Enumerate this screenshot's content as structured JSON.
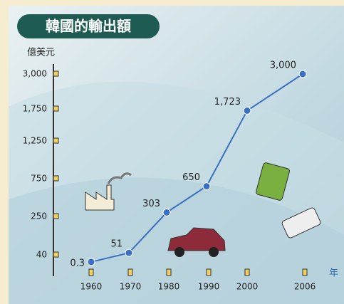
{
  "chart_data": {
    "type": "line",
    "title": "韓國的輸出額",
    "y_label": "億美元",
    "x_label": "年",
    "categories": [
      "1960",
      "1970",
      "1980",
      "1990",
      "2000",
      "2006"
    ],
    "values": [
      0.3,
      51,
      303,
      650,
      1723,
      3000
    ],
    "value_labels": [
      "0.3",
      "51",
      "303",
      "650",
      "1,723",
      "3,000"
    ],
    "color": "#3a6fc4",
    "ylim": [
      0,
      3000
    ],
    "yticks": [
      40,
      250,
      750,
      {
        "value": 1250,
        "label": "1,250"
      },
      {
        "value": 1750,
        "label": "1,750"
      },
      {
        "value": 3000,
        "label": "3,000"
      }
    ]
  }
}
